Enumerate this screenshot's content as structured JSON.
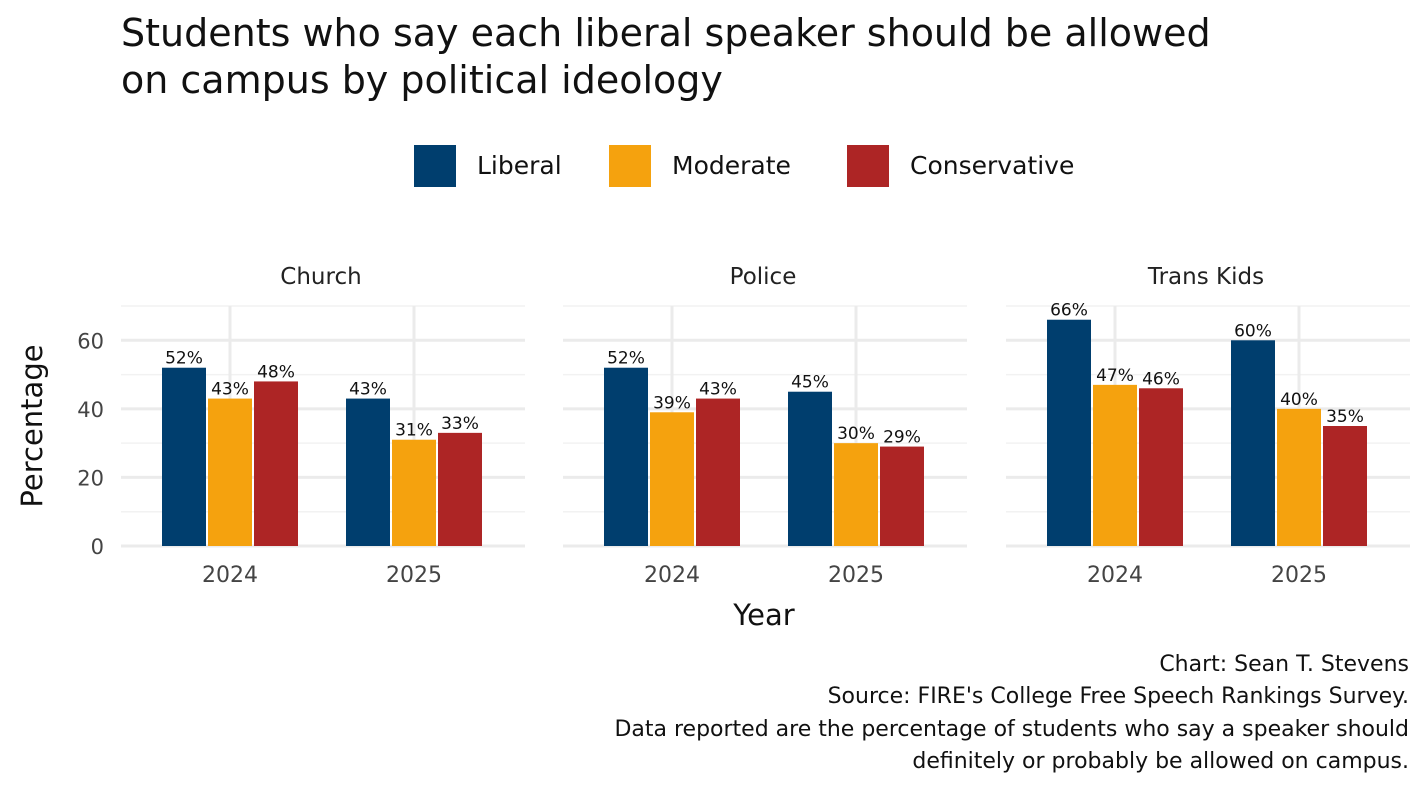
{
  "chart_data": {
    "type": "bar",
    "title_lines": [
      "Students who say each liberal speaker should be allowed",
      "on campus by political ideology"
    ],
    "xlabel": "Year",
    "ylabel": "Percentage",
    "ylim": [
      0,
      70
    ],
    "yticks": [
      0,
      20,
      40,
      60
    ],
    "categories": [
      "2024",
      "2025"
    ],
    "legend": {
      "position": "top"
    },
    "series": [
      {
        "name": "Liberal",
        "color": "#003e6e"
      },
      {
        "name": "Moderate",
        "color": "#f5a20e"
      },
      {
        "name": "Conservative",
        "color": "#ad2525"
      }
    ],
    "facets": [
      {
        "name": "Church",
        "values": {
          "Liberal": [
            52,
            43
          ],
          "Moderate": [
            43,
            31
          ],
          "Conservative": [
            48,
            33
          ]
        }
      },
      {
        "name": "Police",
        "values": {
          "Liberal": [
            52,
            45
          ],
          "Moderate": [
            39,
            30
          ],
          "Conservative": [
            43,
            29
          ]
        }
      },
      {
        "name": "Trans Kids",
        "values": {
          "Liberal": [
            66,
            60
          ],
          "Moderate": [
            47,
            40
          ],
          "Conservative": [
            46,
            35
          ]
        }
      }
    ],
    "caption_lines": [
      "Chart: Sean T. Stevens",
      "Source: FIRE's College Free Speech Rankings Survey.",
      "Data reported are the percentage of students who say a speaker should",
      "definitely or probably be allowed on campus."
    ]
  }
}
